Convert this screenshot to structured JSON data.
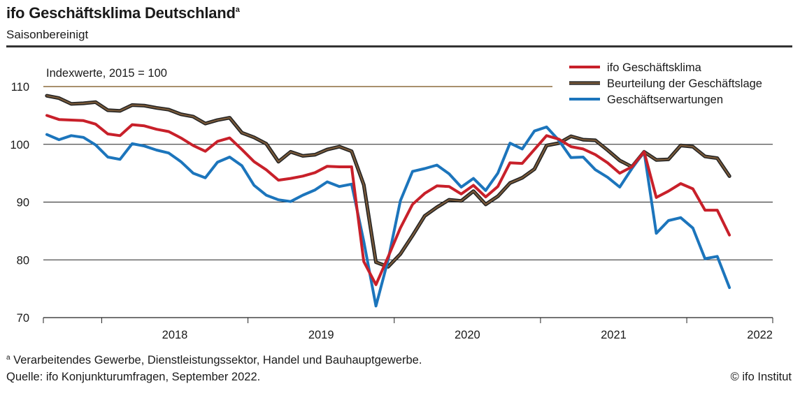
{
  "header": {
    "title": "ifo Geschäftsklima Deutschland",
    "title_sup": "a",
    "subtitle": "Saisonbereinigt"
  },
  "footer": {
    "footnote_sup": "a",
    "footnote_text": "Verarbeitendes Gewerbe, Dienstleistungssektor, Handel und Bauhauptgewerbe.",
    "source": "Quelle: ifo Konjunkturumfragen, September 2022.",
    "copyright": "© ifo Institut"
  },
  "colors": {
    "klima": "#c8202a",
    "lage": "#7a5a3a",
    "lage_outline": "#222222",
    "erwartungen": "#1c75bc",
    "grid": "#222222",
    "reference_line": "#8b6b3d"
  },
  "chart_data": {
    "type": "line",
    "annotation": "Indexwerte, 2015 = 100",
    "reference_value": 110,
    "ylim": [
      70,
      110
    ],
    "yticks": [
      70,
      80,
      90,
      100,
      110
    ],
    "grid": true,
    "legend_placement": "top-right",
    "x_start": "2017-08",
    "x_end": "2022-09",
    "years": [
      "2018",
      "2019",
      "2020",
      "2021",
      "2022"
    ],
    "series": [
      {
        "key": "klima",
        "name": "ifo Geschäftsklima",
        "values": [
          105.0,
          104.3,
          104.2,
          104.1,
          103.5,
          101.8,
          101.5,
          103.4,
          103.2,
          102.6,
          102.2,
          101.1,
          99.8,
          98.8,
          100.5,
          101.1,
          99.1,
          97.0,
          95.6,
          93.8,
          94.1,
          94.5,
          95.1,
          96.2,
          96.1,
          96.1,
          79.7,
          75.7,
          80.5,
          85.5,
          89.6,
          91.5,
          92.8,
          92.7,
          91.4,
          92.9,
          90.9,
          92.7,
          96.8,
          96.7,
          99.1,
          101.5,
          100.9,
          99.6,
          99.2,
          98.2,
          96.8,
          95.0,
          96.1,
          98.7,
          90.8,
          91.9,
          93.2,
          92.3,
          88.6,
          88.6,
          84.3
        ]
      },
      {
        "key": "lage",
        "name": "Beurteilung der Geschäftslage",
        "values": [
          108.4,
          108.0,
          107.0,
          107.1,
          107.3,
          105.9,
          105.8,
          106.8,
          106.7,
          106.3,
          106.0,
          105.2,
          104.8,
          103.6,
          104.2,
          104.6,
          102.0,
          101.2,
          100.1,
          97.0,
          98.7,
          98.0,
          98.2,
          99.1,
          99.6,
          98.8,
          93.0,
          79.6,
          78.8,
          81.0,
          84.2,
          87.6,
          89.1,
          90.4,
          90.2,
          91.9,
          89.6,
          91.0,
          93.3,
          94.2,
          95.7,
          99.8,
          100.2,
          101.4,
          100.8,
          100.7,
          99.0,
          97.2,
          96.1,
          98.7,
          97.3,
          97.4,
          99.8,
          99.6,
          97.9,
          97.6,
          94.5
        ]
      },
      {
        "key": "erwartungen",
        "name": "Geschäftserwartungen",
        "values": [
          101.7,
          100.8,
          101.5,
          101.2,
          99.9,
          97.8,
          97.4,
          100.1,
          99.7,
          99.0,
          98.5,
          97.0,
          95.0,
          94.2,
          96.9,
          97.8,
          96.3,
          92.9,
          91.2,
          90.4,
          90.1,
          91.2,
          92.1,
          93.5,
          92.7,
          93.1,
          83.2,
          72.0,
          80.0,
          90.2,
          95.3,
          95.8,
          96.4,
          94.9,
          92.6,
          94.1,
          92.0,
          95.0,
          100.2,
          99.2,
          102.3,
          103.0,
          100.7,
          97.7,
          97.8,
          95.6,
          94.3,
          92.6,
          95.8,
          98.7,
          84.6,
          86.8,
          87.3,
          85.5,
          80.2,
          80.6,
          75.2
        ]
      }
    ]
  }
}
